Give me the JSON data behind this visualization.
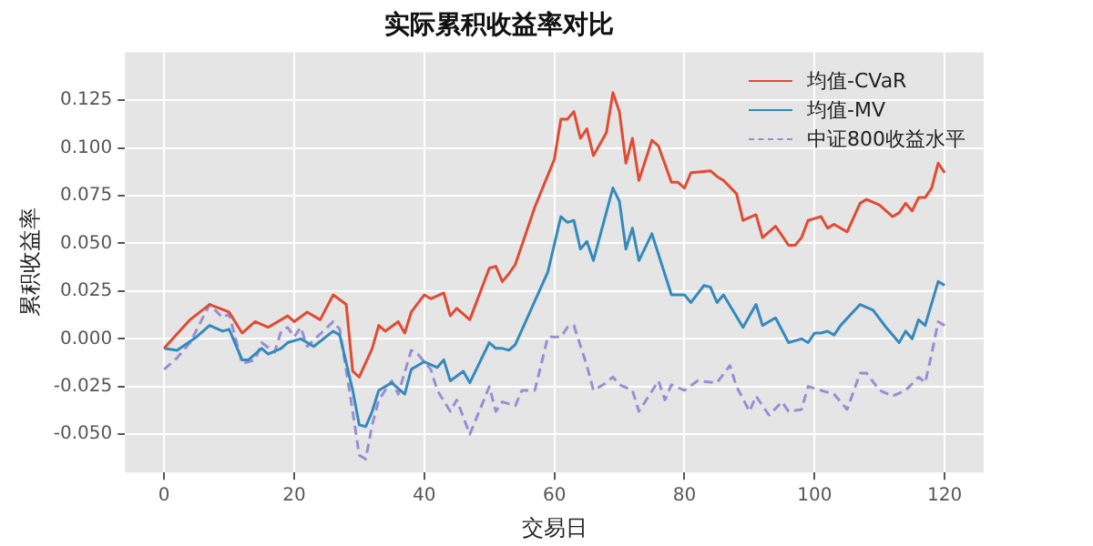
{
  "chart_data": {
    "type": "line",
    "title": "实际累积收益率对比",
    "xlabel": "交易日",
    "ylabel": "累积收益率",
    "xlim": [
      -6,
      126
    ],
    "xticks": [
      0,
      20,
      40,
      60,
      80,
      100,
      120
    ],
    "ylim": [
      -0.07,
      0.15
    ],
    "yticks": [
      {
        "value": -0.05,
        "label": "-0.050"
      },
      {
        "value": -0.025,
        "label": "-0.025"
      },
      {
        "value": 0,
        "label": "0.000"
      },
      {
        "value": 0.025,
        "label": "0.025"
      },
      {
        "value": 0.05,
        "label": "0.050"
      },
      {
        "value": 0.075,
        "label": "0.075"
      },
      {
        "value": 0.1,
        "label": "0.100"
      },
      {
        "value": 0.125,
        "label": "0.125"
      }
    ],
    "grid": true,
    "legend": "top right",
    "marker": "none",
    "series": [
      {
        "name": "均值-CVaR",
        "color": "#e24a33",
        "line_style": "solid",
        "x": [
          0,
          4,
          7,
          10,
          12,
          14,
          16,
          19,
          20,
          22,
          24,
          26,
          28,
          29,
          30,
          32,
          33,
          34,
          36,
          37,
          38,
          40,
          41,
          43,
          44,
          45,
          47,
          50,
          51,
          52,
          53,
          54,
          57,
          60,
          61,
          62,
          63,
          64,
          65,
          66,
          68,
          69,
          70,
          71,
          72,
          73,
          75,
          76,
          78,
          79,
          80,
          81,
          84,
          85,
          86,
          88,
          89,
          91,
          92,
          94,
          96,
          97,
          98,
          99,
          100,
          101,
          102,
          103,
          105,
          107,
          108,
          110,
          112,
          113,
          114,
          115,
          116,
          117,
          118,
          119,
          120
        ],
        "values": [
          -0.005,
          0.01,
          0.018,
          0.014,
          0.003,
          0.009,
          0.006,
          0.012,
          0.009,
          0.014,
          0.01,
          0.023,
          0.018,
          -0.017,
          -0.02,
          -0.005,
          0.007,
          0.004,
          0.009,
          0.003,
          0.014,
          0.023,
          0.021,
          0.024,
          0.012,
          0.016,
          0.01,
          0.037,
          0.038,
          0.03,
          0.034,
          0.039,
          0.069,
          0.094,
          0.115,
          0.115,
          0.119,
          0.105,
          0.11,
          0.096,
          0.108,
          0.129,
          0.119,
          0.092,
          0.105,
          0.083,
          0.104,
          0.101,
          0.082,
          0.082,
          0.079,
          0.087,
          0.088,
          0.085,
          0.083,
          0.076,
          0.062,
          0.065,
          0.053,
          0.059,
          0.049,
          0.049,
          0.053,
          0.062,
          0.063,
          0.064,
          0.058,
          0.06,
          0.056,
          0.071,
          0.073,
          0.07,
          0.064,
          0.066,
          0.071,
          0.067,
          0.074,
          0.074,
          0.079,
          0.092,
          0.087
        ]
      },
      {
        "name": "均值-MV",
        "color": "#348abd",
        "line_style": "solid",
        "x": [
          0,
          2,
          5,
          7,
          9,
          10,
          12,
          13,
          15,
          16,
          18,
          19,
          21,
          23,
          26,
          27,
          29,
          30,
          31,
          32,
          33,
          35,
          37,
          38,
          40,
          42,
          43,
          44,
          46,
          47,
          50,
          51,
          52,
          53,
          54,
          59,
          61,
          62,
          63,
          64,
          65,
          66,
          69,
          70,
          71,
          72,
          73,
          75,
          78,
          80,
          81,
          83,
          84,
          85,
          86,
          89,
          91,
          92,
          94,
          96,
          98,
          99,
          100,
          101,
          102,
          103,
          104,
          107,
          109,
          111,
          113,
          114,
          115,
          116,
          117,
          119,
          120
        ],
        "values": [
          -0.005,
          -0.006,
          0.001,
          0.007,
          0.004,
          0.005,
          -0.011,
          -0.011,
          -0.005,
          -0.008,
          -0.005,
          -0.002,
          0.0,
          -0.004,
          0.004,
          0.002,
          -0.027,
          -0.045,
          -0.046,
          -0.038,
          -0.027,
          -0.023,
          -0.029,
          -0.016,
          -0.012,
          -0.015,
          -0.011,
          -0.022,
          -0.017,
          -0.023,
          -0.002,
          -0.005,
          -0.005,
          -0.006,
          -0.003,
          0.035,
          0.064,
          0.061,
          0.062,
          0.047,
          0.051,
          0.041,
          0.079,
          0.072,
          0.047,
          0.058,
          0.041,
          0.055,
          0.023,
          0.023,
          0.019,
          0.028,
          0.027,
          0.019,
          0.023,
          0.006,
          0.018,
          0.007,
          0.011,
          -0.002,
          0.0,
          -0.002,
          0.003,
          0.003,
          0.004,
          0.002,
          0.007,
          0.018,
          0.015,
          0.006,
          -0.002,
          0.004,
          0.0,
          0.01,
          0.007,
          0.03,
          0.028
        ]
      },
      {
        "name": "中证800收益水平",
        "color": "#988ed5",
        "line_style": "dashed",
        "x": [
          0,
          2,
          4,
          7,
          9,
          10,
          12,
          14,
          15,
          17,
          18,
          19,
          20,
          21,
          22,
          26,
          27,
          29,
          30,
          31,
          32,
          33,
          35,
          36,
          38,
          39,
          41,
          42,
          44,
          45,
          47,
          50,
          51,
          52,
          54,
          55,
          57,
          59,
          61,
          62,
          63,
          65,
          66,
          68,
          69,
          70,
          72,
          73,
          76,
          77,
          78,
          80,
          82,
          85,
          87,
          88,
          90,
          91,
          93,
          95,
          96,
          98,
          99,
          101,
          103,
          105,
          107,
          108,
          110,
          112,
          114,
          116,
          117,
          118,
          119,
          120
        ],
        "values": [
          -0.016,
          -0.01,
          -0.002,
          0.018,
          0.011,
          0.013,
          -0.013,
          -0.011,
          -0.002,
          -0.007,
          0.004,
          0.006,
          0.001,
          0.006,
          -0.004,
          0.009,
          0.005,
          -0.038,
          -0.061,
          -0.063,
          -0.045,
          -0.032,
          -0.022,
          -0.029,
          -0.006,
          -0.008,
          -0.016,
          -0.027,
          -0.038,
          -0.032,
          -0.05,
          -0.025,
          -0.038,
          -0.033,
          -0.035,
          -0.027,
          -0.027,
          0.001,
          0.001,
          0.006,
          0.007,
          -0.014,
          -0.027,
          -0.023,
          -0.02,
          -0.024,
          -0.027,
          -0.038,
          -0.022,
          -0.032,
          -0.024,
          -0.027,
          -0.022,
          -0.023,
          -0.014,
          -0.025,
          -0.038,
          -0.03,
          -0.04,
          -0.033,
          -0.038,
          -0.037,
          -0.025,
          -0.027,
          -0.029,
          -0.037,
          -0.018,
          -0.018,
          -0.027,
          -0.03,
          -0.027,
          -0.02,
          -0.023,
          -0.008,
          0.009,
          0.007
        ]
      }
    ]
  }
}
